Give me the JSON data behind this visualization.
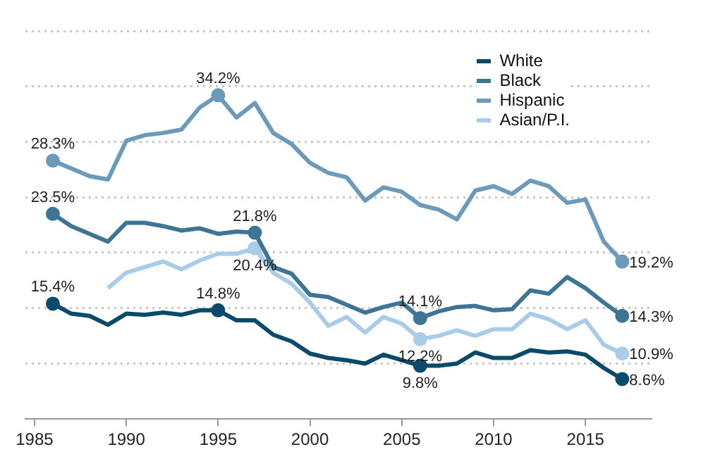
{
  "chart_data": {
    "type": "line",
    "x": [
      1986,
      1987,
      1988,
      1989,
      1990,
      1991,
      1992,
      1993,
      1994,
      1995,
      1996,
      1997,
      1998,
      1999,
      2000,
      2001,
      2002,
      2003,
      2004,
      2005,
      2006,
      2007,
      2008,
      2009,
      2010,
      2011,
      2012,
      2013,
      2014,
      2015,
      2016,
      2017
    ],
    "xlim": [
      1984.5,
      2018.6
    ],
    "xticks": [
      1985,
      1990,
      1995,
      2000,
      2005,
      2010,
      2015
    ],
    "ylim": [
      5,
      40
    ],
    "yticks": [
      {
        "value": 10,
        "label": null
      },
      {
        "value": 15,
        "label": null
      },
      {
        "value": 20,
        "label": null
      },
      {
        "value": 25,
        "label": null
      },
      {
        "value": 30,
        "label": null
      },
      {
        "value": 35,
        "label": null
      },
      {
        "value": 40,
        "label": null
      }
    ],
    "tick_labels": "x",
    "grid": "y",
    "legend": "top right",
    "line_style": "solid",
    "series": [
      {
        "name": "White",
        "color": "#0b4a6b",
        "values": [
          15.4,
          14.5,
          14.3,
          13.5,
          14.5,
          14.4,
          14.6,
          14.4,
          14.8,
          14.8,
          13.9,
          13.9,
          12.6,
          12.0,
          10.9,
          10.5,
          10.3,
          10.0,
          10.8,
          10.3,
          9.8,
          9.8,
          10.0,
          11.0,
          10.5,
          10.5,
          11.2,
          11.0,
          11.1,
          10.8,
          9.6,
          8.6
        ],
        "value_labels": [
          "15.4%",
          null,
          null,
          null,
          null,
          null,
          null,
          null,
          null,
          "14.8%",
          null,
          null,
          null,
          null,
          null,
          null,
          null,
          null,
          null,
          null,
          "9.8%",
          null,
          null,
          null,
          null,
          null,
          null,
          null,
          null,
          null,
          null,
          "8.6%"
        ]
      },
      {
        "name": "Black",
        "color": "#3f7594",
        "values": [
          23.5,
          22.4,
          21.7,
          21.0,
          22.7,
          22.7,
          22.4,
          22.0,
          22.2,
          21.7,
          21.9,
          21.8,
          18.7,
          18.1,
          16.2,
          16.0,
          15.3,
          14.6,
          15.1,
          15.5,
          14.1,
          14.7,
          15.1,
          15.2,
          14.8,
          14.9,
          16.6,
          16.3,
          17.8,
          16.8,
          15.5,
          14.3
        ],
        "value_labels": [
          "23.5%",
          null,
          null,
          null,
          null,
          null,
          null,
          null,
          null,
          null,
          null,
          "21.8%",
          null,
          null,
          null,
          null,
          null,
          null,
          null,
          null,
          "14.1%",
          null,
          null,
          null,
          null,
          null,
          null,
          null,
          null,
          null,
          null,
          "14.3%"
        ]
      },
      {
        "name": "Hispanic",
        "color": "#6c9abb",
        "values": [
          28.3,
          27.6,
          26.9,
          26.6,
          30.1,
          30.6,
          30.8,
          31.1,
          33.1,
          34.2,
          32.2,
          33.5,
          30.8,
          29.8,
          28.1,
          27.2,
          26.8,
          24.7,
          25.9,
          25.5,
          24.3,
          23.9,
          23.0,
          25.6,
          26.0,
          25.3,
          26.5,
          26.0,
          24.5,
          24.8,
          21.0,
          19.2
        ],
        "value_labels": [
          "28.3%",
          null,
          null,
          null,
          null,
          null,
          null,
          null,
          null,
          "34.2%",
          null,
          null,
          null,
          null,
          null,
          null,
          null,
          null,
          null,
          null,
          null,
          null,
          null,
          null,
          null,
          null,
          null,
          null,
          null,
          null,
          null,
          "19.2%"
        ]
      },
      {
        "name": "Asian/P.I.",
        "color": "#a9cde8",
        "values": [
          null,
          null,
          null,
          16.8,
          18.2,
          18.7,
          19.2,
          18.5,
          19.3,
          19.9,
          19.9,
          20.4,
          18.2,
          17.2,
          15.5,
          13.4,
          14.2,
          12.8,
          14.2,
          13.6,
          12.2,
          12.5,
          13.0,
          12.5,
          13.1,
          13.1,
          14.5,
          14.0,
          13.1,
          13.9,
          11.7,
          10.9
        ],
        "value_labels": [
          null,
          null,
          null,
          null,
          null,
          null,
          null,
          null,
          null,
          null,
          null,
          "20.4%",
          null,
          null,
          null,
          null,
          null,
          null,
          null,
          null,
          "12.2%",
          null,
          null,
          null,
          null,
          null,
          null,
          null,
          null,
          null,
          null,
          "10.9%"
        ]
      }
    ]
  }
}
